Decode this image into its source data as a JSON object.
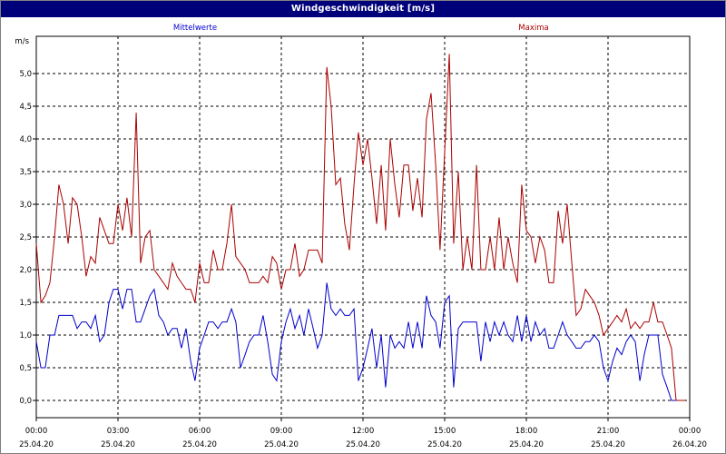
{
  "window": {
    "title": "Windgeschwindigkeit [m/s]"
  },
  "colors": {
    "mean": "#0000cc",
    "max": "#aa0000",
    "grid": "#000000",
    "titlebar": "#00007b"
  },
  "chart_data": {
    "type": "line",
    "title": "Windgeschwindigkeit [m/s]",
    "ylabel": "m/s",
    "ylim": [
      0,
      5.5
    ],
    "xlim": [
      0,
      24
    ],
    "grid": true,
    "yticks": [
      {
        "value": 0,
        "label": "0,0"
      },
      {
        "value": 0.5,
        "label": "0,5"
      },
      {
        "value": 1,
        "label": "1,0"
      },
      {
        "value": 1.5,
        "label": "1,5"
      },
      {
        "value": 2,
        "label": "2,0"
      },
      {
        "value": 2.5,
        "label": "2,5"
      },
      {
        "value": 3,
        "label": "3,0"
      },
      {
        "value": 3.5,
        "label": "3,5"
      },
      {
        "value": 4,
        "label": "4,0"
      },
      {
        "value": 4.5,
        "label": "4,5"
      },
      {
        "value": 5,
        "label": "5,0"
      }
    ],
    "xticks": [
      {
        "value": 0,
        "time": "00:00",
        "date": "25.04.20"
      },
      {
        "value": 3,
        "time": "03:00",
        "date": "25.04.20"
      },
      {
        "value": 6,
        "time": "06:00",
        "date": "25.04.20"
      },
      {
        "value": 9,
        "time": "09:00",
        "date": "25.04.20"
      },
      {
        "value": 12,
        "time": "12:00",
        "date": "25.04.20"
      },
      {
        "value": 15,
        "time": "15:00",
        "date": "25.04.20"
      },
      {
        "value": 18,
        "time": "18:00",
        "date": "25.04.20"
      },
      {
        "value": 21,
        "time": "21:00",
        "date": "25.04.20"
      },
      {
        "value": 24,
        "time": "00:00",
        "date": "26.04.20"
      }
    ],
    "series": [
      {
        "name": "Mittelwerte",
        "color": "#0000cc",
        "points": [
          [
            0.0,
            0.9
          ],
          [
            0.17,
            0.5
          ],
          [
            0.33,
            0.5
          ],
          [
            0.5,
            1.0
          ],
          [
            0.67,
            1.0
          ],
          [
            0.83,
            1.3
          ],
          [
            1.0,
            1.3
          ],
          [
            1.17,
            1.3
          ],
          [
            1.33,
            1.3
          ],
          [
            1.5,
            1.1
          ],
          [
            1.67,
            1.2
          ],
          [
            1.83,
            1.2
          ],
          [
            2.0,
            1.1
          ],
          [
            2.17,
            1.3
          ],
          [
            2.33,
            0.9
          ],
          [
            2.5,
            1.0
          ],
          [
            2.67,
            1.5
          ],
          [
            2.83,
            1.7
          ],
          [
            3.0,
            1.7
          ],
          [
            3.17,
            1.4
          ],
          [
            3.33,
            1.7
          ],
          [
            3.5,
            1.7
          ],
          [
            3.67,
            1.2
          ],
          [
            3.83,
            1.2
          ],
          [
            4.0,
            1.4
          ],
          [
            4.17,
            1.6
          ],
          [
            4.33,
            1.7
          ],
          [
            4.5,
            1.3
          ],
          [
            4.67,
            1.2
          ],
          [
            4.83,
            1.0
          ],
          [
            5.0,
            1.1
          ],
          [
            5.17,
            1.1
          ],
          [
            5.33,
            0.8
          ],
          [
            5.5,
            1.1
          ],
          [
            5.67,
            0.6
          ],
          [
            5.83,
            0.3
          ],
          [
            6.0,
            0.8
          ],
          [
            6.17,
            1.0
          ],
          [
            6.33,
            1.2
          ],
          [
            6.5,
            1.2
          ],
          [
            6.67,
            1.1
          ],
          [
            6.83,
            1.2
          ],
          [
            7.0,
            1.2
          ],
          [
            7.17,
            1.4
          ],
          [
            7.33,
            1.2
          ],
          [
            7.5,
            0.5
          ],
          [
            7.67,
            0.7
          ],
          [
            7.83,
            0.9
          ],
          [
            8.0,
            1.0
          ],
          [
            8.17,
            1.0
          ],
          [
            8.33,
            1.3
          ],
          [
            8.5,
            0.9
          ],
          [
            8.67,
            0.4
          ],
          [
            8.83,
            0.3
          ],
          [
            9.0,
            0.9
          ],
          [
            9.17,
            1.2
          ],
          [
            9.33,
            1.4
          ],
          [
            9.5,
            1.1
          ],
          [
            9.67,
            1.3
          ],
          [
            9.83,
            1.0
          ],
          [
            10.0,
            1.4
          ],
          [
            10.17,
            1.1
          ],
          [
            10.33,
            0.8
          ],
          [
            10.5,
            1.0
          ],
          [
            10.67,
            1.8
          ],
          [
            10.83,
            1.4
          ],
          [
            11.0,
            1.3
          ],
          [
            11.17,
            1.4
          ],
          [
            11.33,
            1.3
          ],
          [
            11.5,
            1.3
          ],
          [
            11.67,
            1.4
          ],
          [
            11.83,
            0.3
          ],
          [
            12.0,
            0.5
          ],
          [
            12.17,
            0.8
          ],
          [
            12.33,
            1.1
          ],
          [
            12.5,
            0.5
          ],
          [
            12.67,
            1.0
          ],
          [
            12.83,
            0.2
          ],
          [
            13.0,
            1.0
          ],
          [
            13.17,
            0.8
          ],
          [
            13.33,
            0.9
          ],
          [
            13.5,
            0.8
          ],
          [
            13.67,
            1.2
          ],
          [
            13.83,
            0.8
          ],
          [
            14.0,
            1.2
          ],
          [
            14.17,
            0.8
          ],
          [
            14.33,
            1.6
          ],
          [
            14.5,
            1.3
          ],
          [
            14.67,
            1.2
          ],
          [
            14.83,
            0.8
          ],
          [
            15.0,
            1.5
          ],
          [
            15.17,
            1.6
          ],
          [
            15.33,
            0.2
          ],
          [
            15.5,
            1.1
          ],
          [
            15.67,
            1.2
          ],
          [
            15.83,
            1.2
          ],
          [
            16.0,
            1.2
          ],
          [
            16.17,
            1.2
          ],
          [
            16.33,
            0.6
          ],
          [
            16.5,
            1.2
          ],
          [
            16.67,
            0.9
          ],
          [
            16.83,
            1.2
          ],
          [
            17.0,
            1.0
          ],
          [
            17.17,
            1.2
          ],
          [
            17.33,
            1.0
          ],
          [
            17.5,
            0.9
          ],
          [
            17.67,
            1.3
          ],
          [
            17.83,
            0.9
          ],
          [
            18.0,
            1.3
          ],
          [
            18.17,
            0.9
          ],
          [
            18.33,
            1.2
          ],
          [
            18.5,
            1.0
          ],
          [
            18.67,
            1.1
          ],
          [
            18.83,
            0.8
          ],
          [
            19.0,
            0.8
          ],
          [
            19.17,
            1.0
          ],
          [
            19.33,
            1.2
          ],
          [
            19.5,
            1.0
          ],
          [
            19.67,
            0.9
          ],
          [
            19.83,
            0.8
          ],
          [
            20.0,
            0.8
          ],
          [
            20.17,
            0.9
          ],
          [
            20.33,
            0.9
          ],
          [
            20.5,
            1.0
          ],
          [
            20.67,
            0.9
          ],
          [
            20.83,
            0.5
          ],
          [
            21.0,
            0.3
          ],
          [
            21.17,
            0.6
          ],
          [
            21.33,
            0.8
          ],
          [
            21.5,
            0.7
          ],
          [
            21.67,
            0.9
          ],
          [
            21.83,
            1.0
          ],
          [
            22.0,
            0.9
          ],
          [
            22.17,
            0.3
          ],
          [
            22.33,
            0.7
          ],
          [
            22.5,
            1.0
          ],
          [
            22.67,
            1.0
          ],
          [
            22.83,
            1.0
          ],
          [
            23.0,
            0.4
          ],
          [
            23.17,
            0.2
          ],
          [
            23.33,
            0.0
          ],
          [
            23.5,
            0.0
          ],
          [
            23.67,
            0.0
          ]
        ]
      },
      {
        "name": "Maxima",
        "color": "#aa0000",
        "points": [
          [
            0.0,
            2.4
          ],
          [
            0.17,
            1.5
          ],
          [
            0.33,
            1.6
          ],
          [
            0.5,
            1.8
          ],
          [
            0.67,
            2.5
          ],
          [
            0.83,
            3.3
          ],
          [
            1.0,
            3.0
          ],
          [
            1.17,
            2.4
          ],
          [
            1.33,
            3.1
          ],
          [
            1.5,
            3.0
          ],
          [
            1.67,
            2.5
          ],
          [
            1.83,
            1.9
          ],
          [
            2.0,
            2.2
          ],
          [
            2.17,
            2.1
          ],
          [
            2.33,
            2.8
          ],
          [
            2.5,
            2.6
          ],
          [
            2.67,
            2.4
          ],
          [
            2.83,
            2.4
          ],
          [
            3.0,
            3.0
          ],
          [
            3.17,
            2.6
          ],
          [
            3.33,
            3.1
          ],
          [
            3.5,
            2.5
          ],
          [
            3.67,
            4.4
          ],
          [
            3.83,
            2.1
          ],
          [
            4.0,
            2.5
          ],
          [
            4.17,
            2.6
          ],
          [
            4.33,
            2.0
          ],
          [
            4.5,
            1.9
          ],
          [
            4.67,
            1.8
          ],
          [
            4.83,
            1.7
          ],
          [
            5.0,
            2.1
          ],
          [
            5.17,
            1.9
          ],
          [
            5.33,
            1.8
          ],
          [
            5.5,
            1.7
          ],
          [
            5.67,
            1.7
          ],
          [
            5.83,
            1.5
          ],
          [
            6.0,
            2.1
          ],
          [
            6.17,
            1.8
          ],
          [
            6.33,
            1.8
          ],
          [
            6.5,
            2.3
          ],
          [
            6.67,
            2.0
          ],
          [
            6.83,
            2.0
          ],
          [
            7.0,
            2.4
          ],
          [
            7.17,
            3.0
          ],
          [
            7.33,
            2.2
          ],
          [
            7.5,
            2.1
          ],
          [
            7.67,
            2.0
          ],
          [
            7.83,
            1.8
          ],
          [
            8.0,
            1.8
          ],
          [
            8.17,
            1.8
          ],
          [
            8.33,
            1.9
          ],
          [
            8.5,
            1.8
          ],
          [
            8.67,
            2.2
          ],
          [
            8.83,
            2.1
          ],
          [
            9.0,
            1.7
          ],
          [
            9.17,
            2.0
          ],
          [
            9.33,
            2.0
          ],
          [
            9.5,
            2.4
          ],
          [
            9.67,
            1.9
          ],
          [
            9.83,
            2.0
          ],
          [
            10.0,
            2.3
          ],
          [
            10.17,
            2.3
          ],
          [
            10.33,
            2.3
          ],
          [
            10.5,
            2.1
          ],
          [
            10.67,
            5.1
          ],
          [
            10.83,
            4.5
          ],
          [
            11.0,
            3.3
          ],
          [
            11.17,
            3.4
          ],
          [
            11.33,
            2.7
          ],
          [
            11.5,
            2.3
          ],
          [
            11.67,
            3.3
          ],
          [
            11.83,
            4.1
          ],
          [
            12.0,
            3.6
          ],
          [
            12.17,
            4.0
          ],
          [
            12.33,
            3.4
          ],
          [
            12.5,
            2.7
          ],
          [
            12.67,
            3.6
          ],
          [
            12.83,
            2.6
          ],
          [
            13.0,
            4.0
          ],
          [
            13.17,
            3.3
          ],
          [
            13.33,
            2.8
          ],
          [
            13.5,
            3.6
          ],
          [
            13.67,
            3.6
          ],
          [
            13.83,
            2.9
          ],
          [
            14.0,
            3.4
          ],
          [
            14.17,
            2.8
          ],
          [
            14.33,
            4.3
          ],
          [
            14.5,
            4.7
          ],
          [
            14.67,
            3.6
          ],
          [
            14.83,
            2.3
          ],
          [
            15.0,
            3.8
          ],
          [
            15.17,
            5.3
          ],
          [
            15.33,
            2.4
          ],
          [
            15.5,
            3.5
          ],
          [
            15.67,
            2.0
          ],
          [
            15.83,
            2.5
          ],
          [
            16.0,
            2.0
          ],
          [
            16.17,
            3.6
          ],
          [
            16.33,
            2.0
          ],
          [
            16.5,
            2.0
          ],
          [
            16.67,
            2.5
          ],
          [
            16.83,
            2.0
          ],
          [
            17.0,
            2.8
          ],
          [
            17.17,
            2.0
          ],
          [
            17.33,
            2.5
          ],
          [
            17.5,
            2.1
          ],
          [
            17.67,
            1.8
          ],
          [
            17.83,
            3.3
          ],
          [
            18.0,
            2.6
          ],
          [
            18.17,
            2.5
          ],
          [
            18.33,
            2.1
          ],
          [
            18.5,
            2.5
          ],
          [
            18.67,
            2.3
          ],
          [
            18.83,
            1.8
          ],
          [
            19.0,
            1.8
          ],
          [
            19.17,
            2.9
          ],
          [
            19.33,
            2.4
          ],
          [
            19.5,
            3.0
          ],
          [
            19.67,
            2.1
          ],
          [
            19.83,
            1.3
          ],
          [
            20.0,
            1.4
          ],
          [
            20.17,
            1.7
          ],
          [
            20.33,
            1.6
          ],
          [
            20.5,
            1.5
          ],
          [
            20.67,
            1.3
          ],
          [
            20.83,
            1.0
          ],
          [
            21.0,
            1.1
          ],
          [
            21.17,
            1.2
          ],
          [
            21.33,
            1.3
          ],
          [
            21.5,
            1.2
          ],
          [
            21.67,
            1.4
          ],
          [
            21.83,
            1.1
          ],
          [
            22.0,
            1.2
          ],
          [
            22.17,
            1.1
          ],
          [
            22.33,
            1.2
          ],
          [
            22.5,
            1.2
          ],
          [
            22.67,
            1.5
          ],
          [
            22.83,
            1.2
          ],
          [
            23.0,
            1.2
          ],
          [
            23.17,
            1.0
          ],
          [
            23.33,
            0.8
          ],
          [
            23.5,
            0.0
          ],
          [
            23.67,
            0.0
          ],
          [
            23.83,
            0.0
          ]
        ]
      }
    ]
  }
}
